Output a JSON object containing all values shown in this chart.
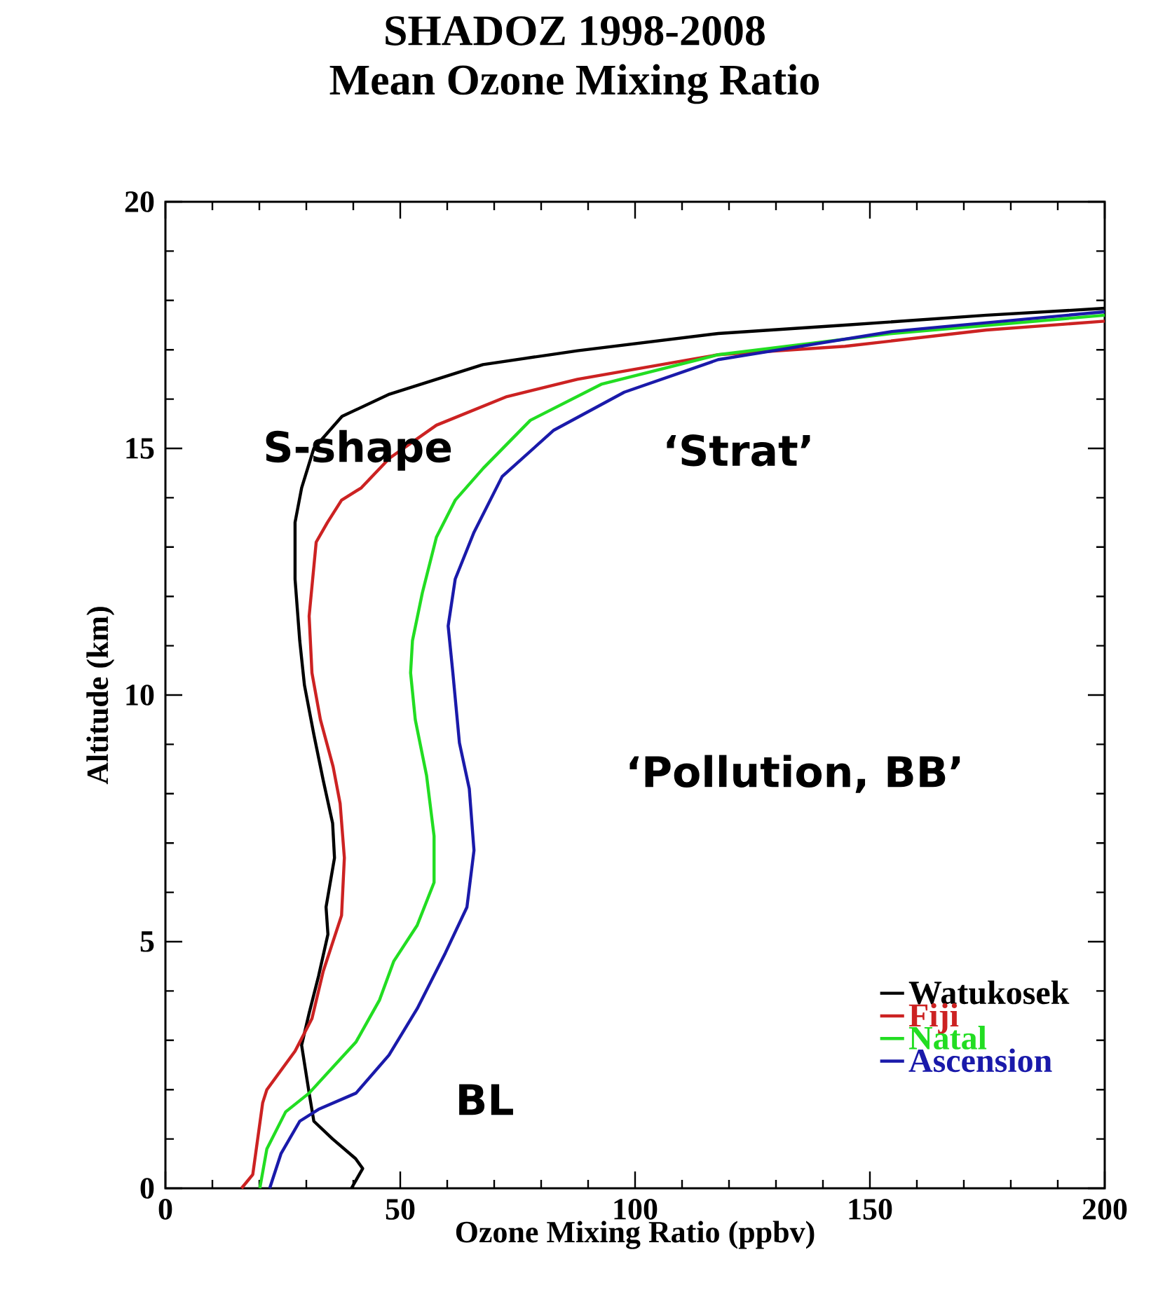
{
  "chart_data": {
    "type": "line",
    "title": "SHADOZ 1998-2008",
    "subtitle": "Mean Ozone Mixing Ratio",
    "xlabel": "Ozone Mixing Ratio (ppbv)",
    "ylabel": "Altitude (km)",
    "xlim": [
      0,
      200
    ],
    "ylim": [
      0,
      20
    ],
    "xticks": [
      0,
      50,
      100,
      150,
      200
    ],
    "yticks": [
      0,
      5,
      10,
      15,
      20
    ],
    "legend": "bottom right",
    "line_style": "solid",
    "series": [
      {
        "name": "Watukosek",
        "color": "#000000",
        "x": [
          39.6,
          42,
          40.5,
          35.6,
          31.6,
          30.6,
          29,
          30.6,
          32.6,
          34.6,
          34.2,
          36,
          35.6,
          33.6,
          31.6,
          29.6,
          28.6,
          27.6,
          27.6,
          29,
          31.6,
          37.6,
          47.7,
          67.6,
          87.7,
          117.7,
          144.7,
          174.8,
          200
        ],
        "values": [
          0,
          0.4,
          0.6,
          1.0,
          1.36,
          1.93,
          2.9,
          3.55,
          4.3,
          5.15,
          5.7,
          6.7,
          7.4,
          8.27,
          9.2,
          10.2,
          11.1,
          12.35,
          13.5,
          14.2,
          15,
          15.65,
          16.1,
          16.7,
          16.98,
          17.33,
          17.5,
          17.7,
          17.84
        ]
      },
      {
        "name": "Fiji",
        "color": "#cc2222",
        "x": [
          16.2,
          18.6,
          20.7,
          21.6,
          27.6,
          31.2,
          33.6,
          37.5,
          38.1,
          37.2,
          35.7,
          33,
          31.2,
          30.6,
          32.1,
          34.5,
          37.5,
          41.7,
          47.7,
          57.7,
          72.7,
          87.7,
          117.7,
          144.7,
          174.8,
          200
        ],
        "values": [
          0,
          0.28,
          1.73,
          2.0,
          2.78,
          3.44,
          4.4,
          5.53,
          6.7,
          7.8,
          8.55,
          9.5,
          10.45,
          11.6,
          13.1,
          13.5,
          13.95,
          14.2,
          14.8,
          15.47,
          16.05,
          16.4,
          16.9,
          17.07,
          17.4,
          17.58
        ]
      },
      {
        "name": "Natal",
        "color": "#22dd22",
        "x": [
          20.1,
          21.6,
          25.6,
          30.6,
          40.6,
          45.6,
          48.6,
          53.6,
          57.2,
          57.2,
          55.6,
          53.2,
          52.2,
          52.6,
          54.7,
          57.7,
          61.7,
          67.7,
          77.7,
          92.8,
          117.7,
          154.7,
          200
        ],
        "values": [
          0,
          0.8,
          1.55,
          1.93,
          2.97,
          3.82,
          4.6,
          5.33,
          6.2,
          7.14,
          8.37,
          9.5,
          10.45,
          11.1,
          12.07,
          13.2,
          13.95,
          14.6,
          15.57,
          16.3,
          16.9,
          17.33,
          17.7
        ]
      },
      {
        "name": "Ascension",
        "color": "#1a1aaa",
        "x": [
          22.2,
          24.6,
          28.6,
          32.6,
          40.6,
          47.6,
          53.6,
          59.6,
          64.2,
          65.7,
          64.7,
          62.6,
          61.2,
          60.2,
          61.7,
          65.7,
          71.7,
          82.7,
          97.7,
          117.7,
          154.7,
          200
        ],
        "values": [
          0,
          0.7,
          1.36,
          1.6,
          1.93,
          2.7,
          3.64,
          4.77,
          5.7,
          6.85,
          8.1,
          9.03,
          10.45,
          11.4,
          12.35,
          13.3,
          14.43,
          15.37,
          16.14,
          16.8,
          17.37,
          17.77
        ]
      }
    ],
    "annotations": [
      "S-shape",
      "‘Strat’",
      "‘Pollution, BB’",
      "BL"
    ]
  }
}
